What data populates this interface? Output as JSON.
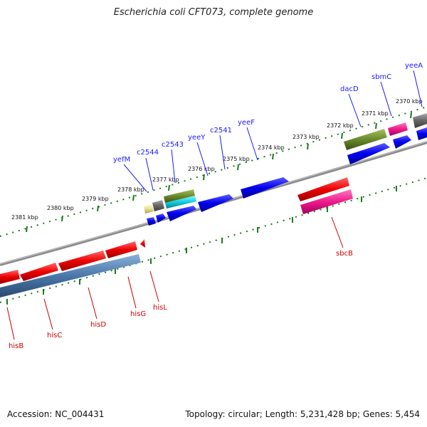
{
  "title": "Escherichia coli CFT073, complete genome",
  "footer": {
    "accession": "Accession: NC_004431",
    "summary": "Topology: circular; Length: 5,231,428 bp; Genes: 5,454"
  },
  "kbp_labels": [
    "2381 kbp",
    "2380 kbp",
    "2379 kbp",
    "2378 kbp",
    "2377 kbp",
    "2376 kbp",
    "2375 kbp",
    "2374 kbp",
    "2373 kbp",
    "2372 kbp",
    "2371 kbp",
    "2370 kbp"
  ],
  "forward_gene_labels": [
    "yefM",
    "c2544",
    "c2543",
    "yeeY",
    "c2541",
    "yeeF",
    "dacD",
    "sbmC",
    "yeeA"
  ],
  "reverse_gene_labels": [
    "hisB",
    "hisC",
    "hisD",
    "hisG",
    "hisL",
    "sbcB"
  ],
  "colors": {
    "forward_gene": "#0000ee",
    "reverse_gene": "#ee0000",
    "label_blue": "#1a1aff",
    "label_red": "#cc0000",
    "tick": "#1a7a1a",
    "backbone": "#888888"
  }
}
